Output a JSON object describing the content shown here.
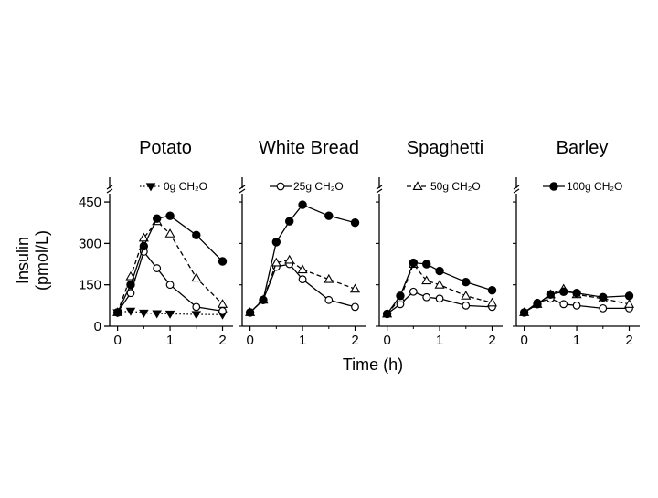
{
  "chart_data": {
    "type": "line",
    "x": [
      0,
      0.25,
      0.5,
      0.75,
      1,
      1.5,
      2
    ],
    "xlabel": "Time (h)",
    "ylabel": [
      "Insulin",
      "(pmol/L)"
    ],
    "ylim": [
      0,
      480
    ],
    "xlim": [
      -0.15,
      2.2
    ],
    "yticks": [
      "0",
      "150",
      "300",
      "450"
    ],
    "xticks": [
      "0",
      "1",
      "2"
    ],
    "grid": false,
    "legend": [
      {
        "label": "0g CH₂O",
        "marker": "triangle-down-filled",
        "line": "dotted"
      },
      {
        "label": "25g CH₂O",
        "marker": "circle-open",
        "line": "solid"
      },
      {
        "label": "50g CH₂O",
        "marker": "triangle-up-open",
        "line": "dashed"
      },
      {
        "label": "100g CH₂O",
        "marker": "circle-filled",
        "line": "solid"
      }
    ],
    "panels": [
      {
        "title": "Potato",
        "series": [
          {
            "name": "0g CH₂O",
            "values": [
              50,
              55,
              48,
              46,
              45,
              43,
              42
            ]
          },
          {
            "name": "25g CH₂O",
            "values": [
              50,
              120,
              270,
              210,
              150,
              70,
              55
            ]
          },
          {
            "name": "50g CH₂O",
            "values": [
              50,
              180,
              320,
              380,
              335,
              175,
              80
            ]
          },
          {
            "name": "100g CH₂O",
            "values": [
              50,
              150,
              290,
              390,
              400,
              330,
              235
            ]
          }
        ]
      },
      {
        "title": "White Bread",
        "series": [
          {
            "name": "25g CH₂O",
            "values": [
              50,
              95,
              215,
              225,
              170,
              95,
              70
            ]
          },
          {
            "name": "50g CH₂O",
            "values": [
              50,
              95,
              230,
              240,
              205,
              170,
              135
            ]
          },
          {
            "name": "100g CH₂O",
            "values": [
              50,
              95,
              305,
              380,
              440,
              400,
              375
            ]
          }
        ]
      },
      {
        "title": "Spaghetti",
        "series": [
          {
            "name": "25g CH₂O",
            "values": [
              45,
              80,
              125,
              105,
              100,
              75,
              70
            ]
          },
          {
            "name": "50g CH₂O",
            "values": [
              45,
              100,
              225,
              165,
              150,
              110,
              85
            ]
          },
          {
            "name": "100g CH₂O",
            "values": [
              45,
              110,
              230,
              225,
              200,
              160,
              130
            ]
          }
        ]
      },
      {
        "title": "Barley",
        "series": [
          {
            "name": "25g CH₂O",
            "values": [
              50,
              85,
              100,
              80,
              75,
              65,
              65
            ]
          },
          {
            "name": "50g CH₂O",
            "values": [
              50,
              80,
              115,
              135,
              115,
              100,
              80
            ]
          },
          {
            "name": "100g CH₂O",
            "values": [
              50,
              80,
              115,
              125,
              120,
              105,
              110
            ]
          }
        ]
      }
    ]
  }
}
